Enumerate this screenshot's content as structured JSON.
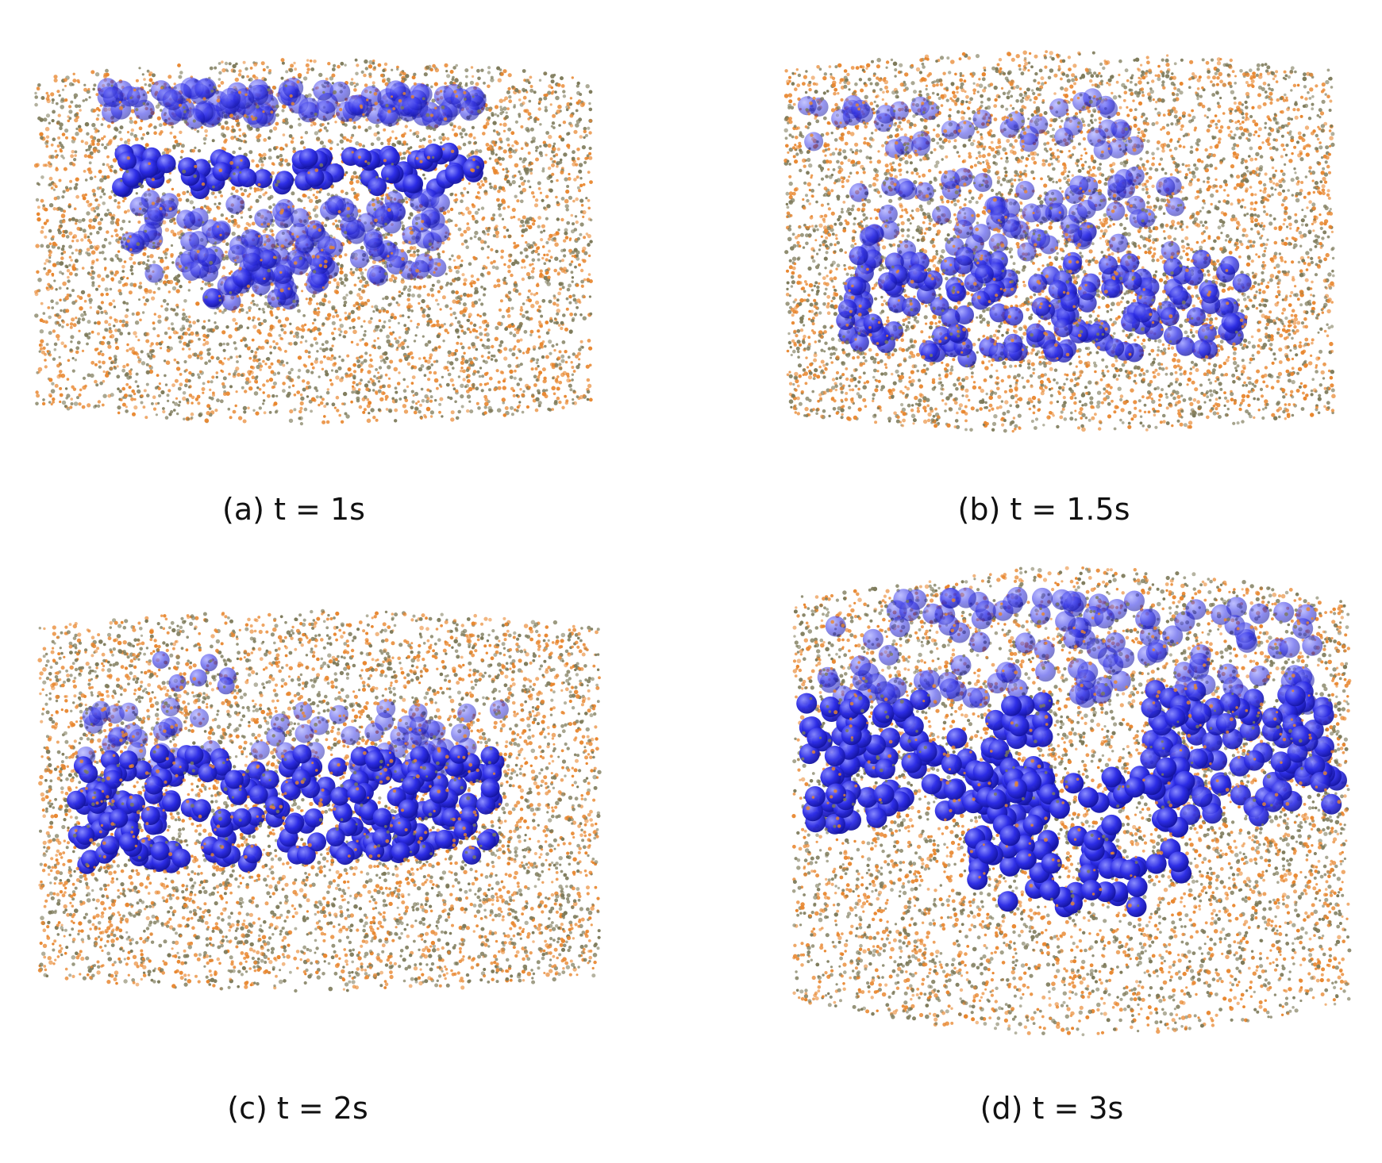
{
  "figure": {
    "colors": {
      "blue_particle": "#2c2ce6",
      "orange_particle": "#e8862e",
      "olive_particle": "#7d7a5a",
      "background": "#ffffff"
    },
    "panels": [
      {
        "id": "a",
        "caption": "(a) t = 1s"
      },
      {
        "id": "b",
        "caption": "(b) t = 1.5s"
      },
      {
        "id": "c",
        "caption": "(c) t = 2s"
      },
      {
        "id": "d",
        "caption": "(d) t = 3s"
      }
    ]
  }
}
